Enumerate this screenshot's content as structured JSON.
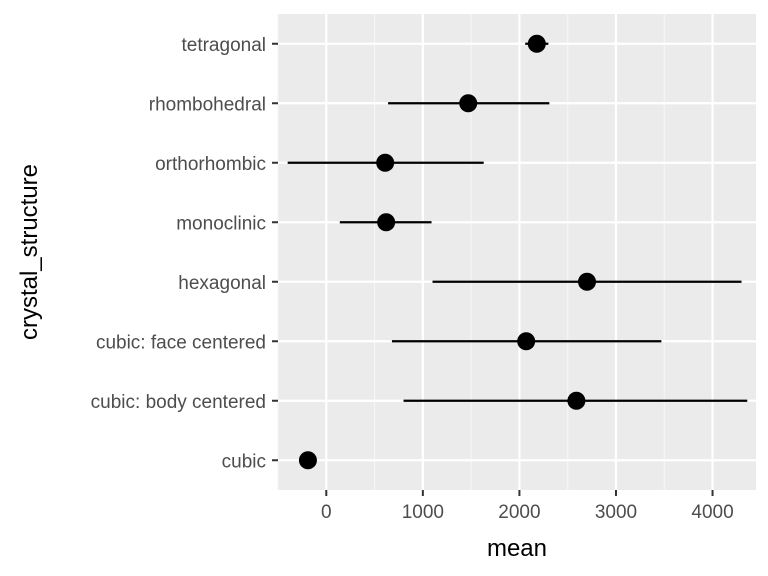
{
  "chart_data": {
    "type": "scatter",
    "subtype": "pointrange",
    "title": "",
    "xlabel": "mean",
    "ylabel": "crystal_structure",
    "xlim": [
      -500,
      4450
    ],
    "x_ticks": [
      0,
      1000,
      2000,
      3000,
      4000
    ],
    "x_tick_labels": [
      "0",
      "1000",
      "2000",
      "3000",
      "4000"
    ],
    "grid": true,
    "legend": "none",
    "categories": [
      "cubic",
      "cubic: body centered",
      "cubic: face centered",
      "hexagonal",
      "monoclinic",
      "orthorhombic",
      "rhombohedral",
      "tetragonal"
    ],
    "series": [
      {
        "mean": [
          -190,
          2590,
          2070,
          2700,
          620,
          610,
          1470,
          2180
        ],
        "lower": [
          -190,
          800,
          680,
          1100,
          140,
          -400,
          640,
          2060
        ],
        "upper": [
          -190,
          4360,
          3470,
          4300,
          1090,
          1630,
          2310,
          2300
        ]
      }
    ],
    "colors": {
      "panel": "#ebebeb",
      "grid_major": "#ffffff",
      "grid_minor": "#f5f5f5",
      "point": "#000000",
      "tick_text": "#4d4d4d",
      "tick_mark": "#333333"
    }
  }
}
